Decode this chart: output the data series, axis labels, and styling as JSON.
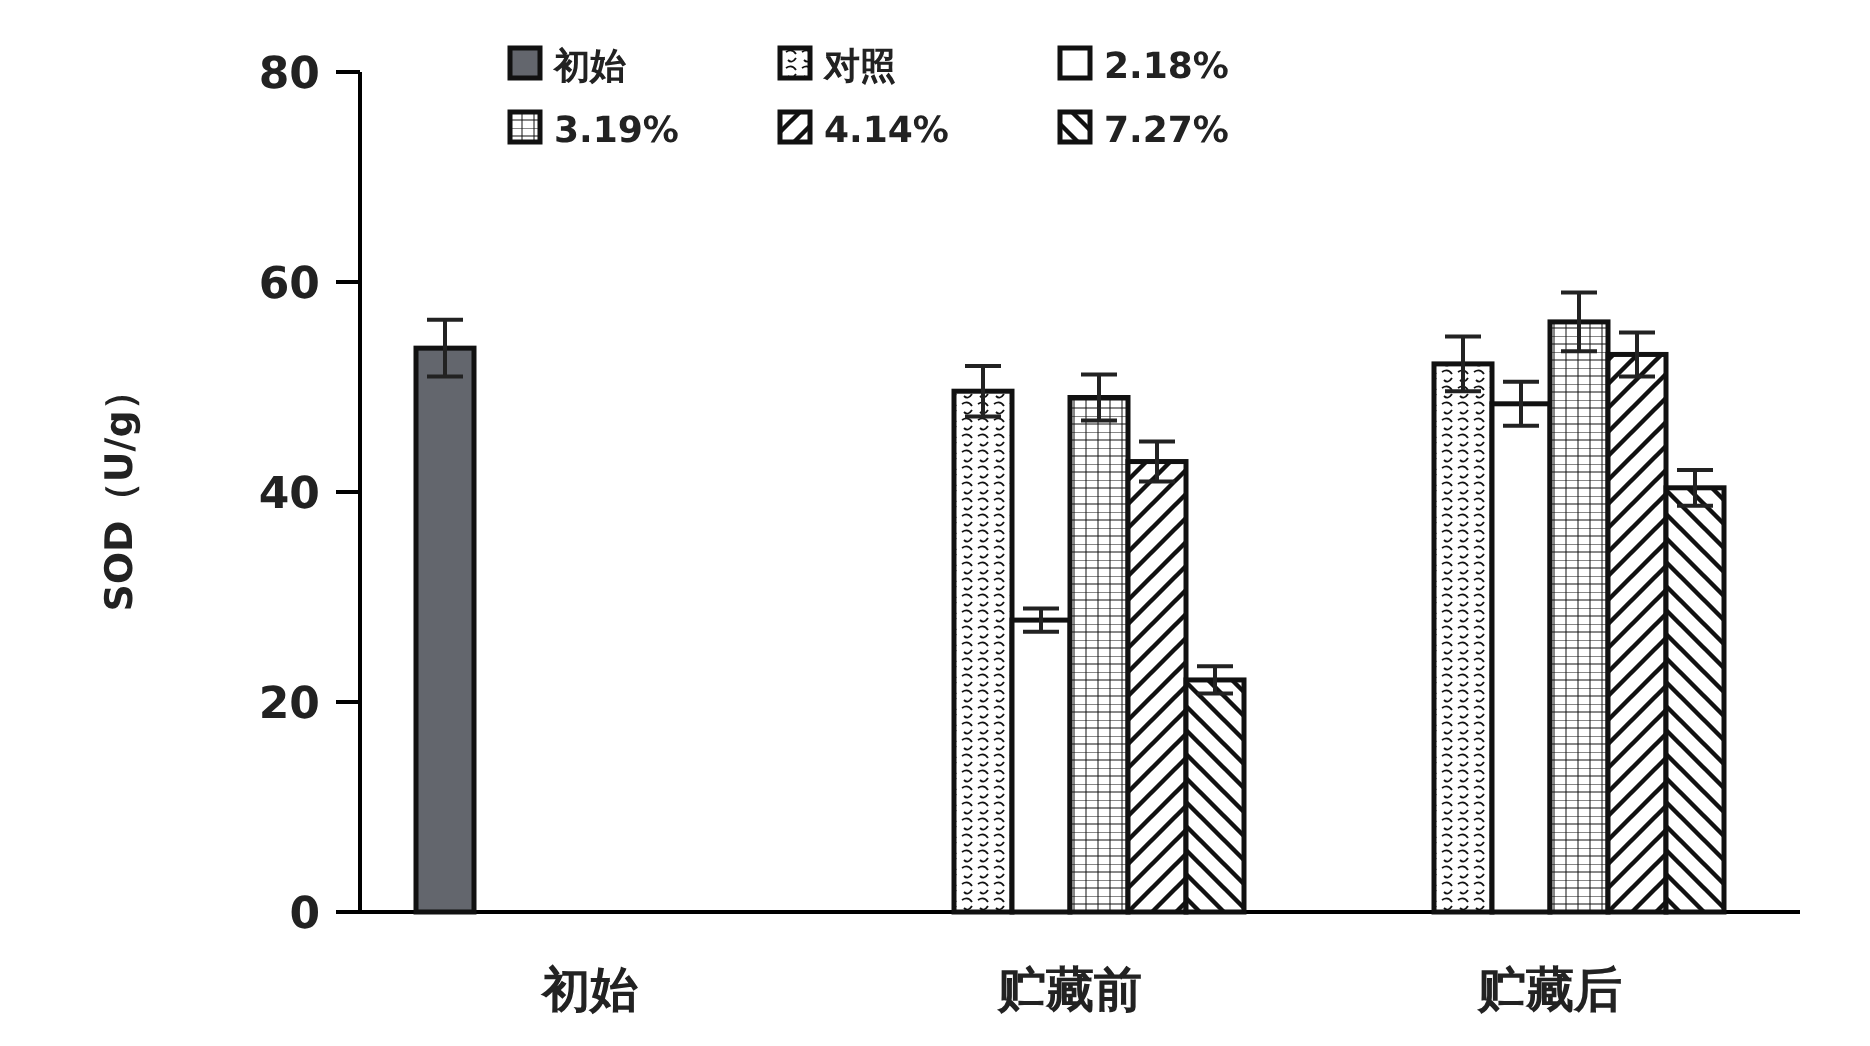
{
  "chart_data": {
    "type": "bar",
    "ylabel": "SOD（U/g）",
    "categories": [
      "初始",
      "贮藏前",
      "贮藏后"
    ],
    "series": [
      {
        "name": "初始",
        "color": "#63666d",
        "values": [
          53.7,
          null,
          null
        ],
        "errors": [
          2.7,
          null,
          null
        ]
      },
      {
        "name": "对照",
        "color": "#111111",
        "values": [
          null,
          49.6,
          52.2
        ],
        "errors": [
          null,
          2.4,
          2.6
        ]
      },
      {
        "name": "2.18%",
        "color": "#ffffff",
        "values": [
          null,
          27.8,
          48.4
        ],
        "errors": [
          null,
          1.1,
          2.1
        ]
      },
      {
        "name": "3.19%",
        "color": "#111111",
        "values": [
          null,
          49.0,
          56.2
        ],
        "errors": [
          null,
          2.2,
          2.8
        ]
      },
      {
        "name": "4.14%",
        "color": "#111111",
        "values": [
          null,
          42.9,
          53.1
        ],
        "errors": [
          null,
          1.9,
          2.1
        ]
      },
      {
        "name": "7.27%",
        "color": "#111111",
        "values": [
          null,
          22.1,
          40.4
        ],
        "errors": [
          null,
          1.3,
          1.7
        ]
      }
    ],
    "ylim": [
      0,
      80
    ],
    "yticks": [
      0,
      20,
      40,
      60,
      80
    ],
    "legend": "top",
    "grid": false
  }
}
